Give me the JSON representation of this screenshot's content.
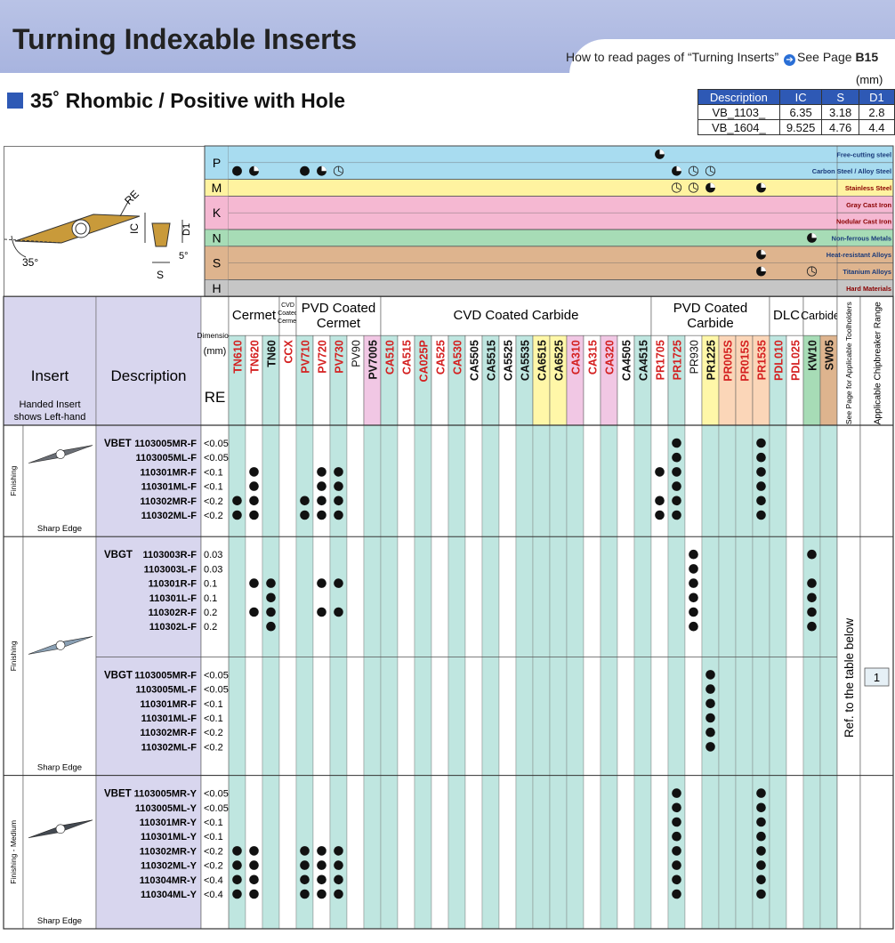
{
  "header": {
    "title": "Turning Indexable Inserts",
    "howto_prefix": "How to read pages of “Turning Inserts”",
    "howto_see": "See Page",
    "howto_page": "B15"
  },
  "subtitle": "35˚ Rhombic / Positive with Hole",
  "dim_table": {
    "unit": "(mm)",
    "headers": [
      "Description",
      "IC",
      "S",
      "D1"
    ],
    "rows": [
      [
        "VB_1103_",
        "6.35",
        "3.18",
        "2.8"
      ],
      [
        "VB_1604_",
        "9.525",
        "4.76",
        "4.4"
      ]
    ]
  },
  "diagram": {
    "re": "RE",
    "ic": "IC",
    "d1": "D1",
    "s": "S",
    "angle35": "35°",
    "angle5": "5°"
  },
  "materials": [
    {
      "code": "P",
      "color": "#a8dcf0",
      "rows": [
        "Free-cutting steel",
        "Carbon Steel / Alloy Steel"
      ]
    },
    {
      "code": "M",
      "color": "#fff3a0",
      "rows": [
        "Stainless Steel"
      ]
    },
    {
      "code": "K",
      "color": "#f5b8d2",
      "rows": [
        "Gray Cast Iron",
        "Nodular Cast Iron"
      ]
    },
    {
      "code": "N",
      "color": "#a7dcb6",
      "rows": [
        "Non-ferrous Metals"
      ]
    },
    {
      "code": "S",
      "color": "#deb48e",
      "rows": [
        "Heat-resistant Alloys",
        "Titanium Alloys"
      ]
    },
    {
      "code": "H",
      "color": "#c6c6c6",
      "rows": [
        "Hard Materials"
      ]
    }
  ],
  "table_headers": {
    "insert": "Insert",
    "handed": "Handed Insert shows Left-hand",
    "description": "Description",
    "dimension": "Dimension (mm)",
    "re": "RE",
    "toolholders": "See Page for Applicable Toolholders",
    "chipbreaker": "Applicable Chipbreaker Range"
  },
  "groups": [
    {
      "label": "Cermet",
      "cols": 3
    },
    {
      "label": "CVD Coated Cermet",
      "cols": 1
    },
    {
      "label": "PVD Coated Cermet",
      "cols": 5
    },
    {
      "label": "CVD Coated Carbide",
      "cols": 16
    },
    {
      "label": "PVD Coated Carbide",
      "cols": 7
    },
    {
      "label": "DLC",
      "cols": 2
    },
    {
      "label": "Carbide",
      "cols": 2
    }
  ],
  "grades": [
    {
      "name": "TN610",
      "color": "#d42020",
      "bg": "#bfe6e0"
    },
    {
      "name": "TN620",
      "color": "#d42020",
      "bg": "#ffffff"
    },
    {
      "name": "TN60",
      "color": "#111111",
      "bg": "#bfe6e0"
    },
    {
      "name": "CCX",
      "color": "#d42020",
      "bg": "#ffffff"
    },
    {
      "name": "PV710",
      "color": "#d42020",
      "bg": "#bfe6e0"
    },
    {
      "name": "PV720",
      "color": "#d42020",
      "bg": "#ffffff"
    },
    {
      "name": "PV730",
      "color": "#d42020",
      "bg": "#bfe6e0"
    },
    {
      "name": "PV90",
      "color": "#111111",
      "bg": "#ffffff",
      "normal": true
    },
    {
      "name": "PV7005",
      "color": "#111111",
      "bg": "#f1c7e4"
    },
    {
      "name": "CA510",
      "color": "#d42020",
      "bg": "#bfe6e0"
    },
    {
      "name": "CA515",
      "color": "#d42020",
      "bg": "#ffffff"
    },
    {
      "name": "CA025P",
      "color": "#d42020",
      "bg": "#bfe6e0"
    },
    {
      "name": "CA525",
      "color": "#d42020",
      "bg": "#ffffff"
    },
    {
      "name": "CA530",
      "color": "#d42020",
      "bg": "#bfe6e0"
    },
    {
      "name": "CA5505",
      "color": "#111111",
      "bg": "#ffffff"
    },
    {
      "name": "CA5515",
      "color": "#111111",
      "bg": "#bfe6e0"
    },
    {
      "name": "CA5525",
      "color": "#111111",
      "bg": "#ffffff"
    },
    {
      "name": "CA5535",
      "color": "#111111",
      "bg": "#bfe6e0"
    },
    {
      "name": "CA6515",
      "color": "#111111",
      "bg": "#fff7a8"
    },
    {
      "name": "CA6525",
      "color": "#111111",
      "bg": "#fff7a8"
    },
    {
      "name": "CA310",
      "color": "#d42020",
      "bg": "#f1c7e4"
    },
    {
      "name": "CA315",
      "color": "#d42020",
      "bg": "#ffffff"
    },
    {
      "name": "CA320",
      "color": "#d42020",
      "bg": "#f1c7e4"
    },
    {
      "name": "CA4505",
      "color": "#111111",
      "bg": "#ffffff"
    },
    {
      "name": "CA4515",
      "color": "#111111",
      "bg": "#bfe6e0"
    },
    {
      "name": "PR1705",
      "color": "#d42020",
      "bg": "#ffffff"
    },
    {
      "name": "PR1725",
      "color": "#d42020",
      "bg": "#bfe6e0"
    },
    {
      "name": "PR930",
      "color": "#111111",
      "bg": "#ffffff",
      "normal": true
    },
    {
      "name": "PR1225",
      "color": "#111111",
      "bg": "#fff7a8"
    },
    {
      "name": "PR005S",
      "color": "#d42020",
      "bg": "#fbd6b8"
    },
    {
      "name": "PR015S",
      "color": "#d42020",
      "bg": "#fbd6b8"
    },
    {
      "name": "PR1535",
      "color": "#d42020",
      "bg": "#fbd6b8"
    },
    {
      "name": "PDL010",
      "color": "#d42020",
      "bg": "#bfe6e0"
    },
    {
      "name": "PDL025",
      "color": "#d42020",
      "bg": "#ffffff"
    },
    {
      "name": "KW10",
      "color": "#111111",
      "bg": "#a7dcb6"
    },
    {
      "name": "SW05",
      "color": "#111111",
      "bg": "#deb48e"
    }
  ],
  "mat_marks": [
    {
      "row": 0,
      "col": 25,
      "type": "half"
    },
    {
      "row": 1,
      "col": 0,
      "type": "full"
    },
    {
      "row": 1,
      "col": 1,
      "type": "half"
    },
    {
      "row": 1,
      "col": 4,
      "type": "full"
    },
    {
      "row": 1,
      "col": 5,
      "type": "half"
    },
    {
      "row": 1,
      "col": 6,
      "type": "open"
    },
    {
      "row": 1,
      "col": 26,
      "type": "half"
    },
    {
      "row": 1,
      "col": 27,
      "type": "open"
    },
    {
      "row": 1,
      "col": 28,
      "type": "open"
    },
    {
      "row": 2,
      "col": 26,
      "type": "open"
    },
    {
      "row": 2,
      "col": 27,
      "type": "open"
    },
    {
      "row": 2,
      "col": 28,
      "type": "half"
    },
    {
      "row": 2,
      "col": 31,
      "type": "half"
    },
    {
      "row": 5,
      "col": 34,
      "type": "half"
    },
    {
      "row": 6,
      "col": 31,
      "type": "half"
    },
    {
      "row": 7,
      "col": 31,
      "type": "half"
    },
    {
      "row": 7,
      "col": 34,
      "type": "open"
    }
  ],
  "sections": [
    {
      "side_label": "Finishing",
      "edge": "Sharp Edge",
      "image": "bet",
      "subsections": [
        {
          "prefix": "VBET",
          "rows": [
            {
              "desc": "1103005MR-F",
              "re": "<0.05",
              "dots": [
                26,
                31
              ]
            },
            {
              "desc": "1103005ML-F",
              "re": "<0.05",
              "dots": [
                26,
                31
              ]
            },
            {
              "desc": "110301MR-F",
              "re": "<0.1",
              "dots": [
                1,
                5,
                6,
                25,
                26,
                31
              ]
            },
            {
              "desc": "110301ML-F",
              "re": "<0.1",
              "dots": [
                1,
                5,
                6,
                26,
                31
              ]
            },
            {
              "desc": "110302MR-F",
              "re": "<0.2",
              "dots": [
                0,
                1,
                4,
                5,
                6,
                25,
                26,
                31
              ]
            },
            {
              "desc": "110302ML-F",
              "re": "<0.2",
              "dots": [
                0,
                1,
                4,
                5,
                6,
                25,
                26,
                31
              ]
            }
          ]
        }
      ]
    },
    {
      "side_label": "Finishing",
      "edge": "Sharp Edge",
      "image": "bgt",
      "subsections": [
        {
          "prefix": "VBGT",
          "rows": [
            {
              "desc": "1103003R-F",
              "re": "0.03",
              "dots": [
                27,
                34
              ]
            },
            {
              "desc": "1103003L-F",
              "re": "0.03",
              "dots": [
                27
              ]
            },
            {
              "desc": "110301R-F",
              "re": "0.1",
              "dots": [
                1,
                2,
                5,
                6,
                27,
                34
              ]
            },
            {
              "desc": "110301L-F",
              "re": "0.1",
              "dots": [
                2,
                27,
                34
              ]
            },
            {
              "desc": "110302R-F",
              "re": "0.2",
              "dots": [
                1,
                2,
                5,
                6,
                27,
                34
              ]
            },
            {
              "desc": "110302L-F",
              "re": "0.2",
              "dots": [
                2,
                27,
                34
              ]
            }
          ]
        },
        {
          "prefix": "VBGT",
          "rows": [
            {
              "desc": "1103005MR-F",
              "re": "<0.05",
              "dots": [
                28
              ]
            },
            {
              "desc": "1103005ML-F",
              "re": "<0.05",
              "dots": [
                28
              ]
            },
            {
              "desc": "110301MR-F",
              "re": "<0.1",
              "dots": [
                28
              ]
            },
            {
              "desc": "110301ML-F",
              "re": "<0.1",
              "dots": [
                28
              ]
            },
            {
              "desc": "110302MR-F",
              "re": "<0.2",
              "dots": [
                28
              ]
            },
            {
              "desc": "110302ML-F",
              "re": "<0.2",
              "dots": [
                28
              ]
            }
          ]
        }
      ]
    },
    {
      "side_label": "Finishing - Medium",
      "edge": "Sharp Edge",
      "image": "bet2",
      "subsections": [
        {
          "prefix": "VBET",
          "rows": [
            {
              "desc": "1103005MR-Y",
              "re": "<0.05",
              "dots": [
                26,
                31
              ]
            },
            {
              "desc": "1103005ML-Y",
              "re": "<0.05",
              "dots": [
                26,
                31
              ]
            },
            {
              "desc": "110301MR-Y",
              "re": "<0.1",
              "dots": [
                26,
                31
              ]
            },
            {
              "desc": "110301ML-Y",
              "re": "<0.1",
              "dots": [
                26,
                31
              ]
            },
            {
              "desc": "110302MR-Y",
              "re": "<0.2",
              "dots": [
                0,
                1,
                4,
                5,
                6,
                26,
                31
              ]
            },
            {
              "desc": "110302ML-Y",
              "re": "<0.2",
              "dots": [
                0,
                1,
                4,
                5,
                6,
                26,
                31
              ]
            },
            {
              "desc": "110304MR-Y",
              "re": "<0.4",
              "dots": [
                0,
                1,
                4,
                5,
                6,
                26,
                31
              ]
            },
            {
              "desc": "110304ML-Y",
              "re": "<0.4",
              "dots": [
                0,
                1,
                4,
                5,
                6,
                26,
                31
              ]
            }
          ]
        }
      ]
    }
  ],
  "ref_text": "Ref. to the table below",
  "chipbreaker_value": "1"
}
